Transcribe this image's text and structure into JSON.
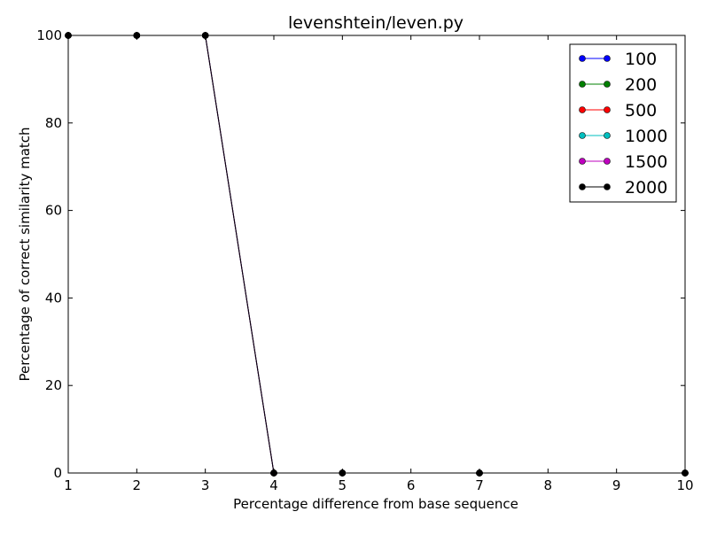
{
  "chart_data": {
    "type": "line",
    "title": "levenshtein/leven.py",
    "xlabel": "Percentage difference from base sequence",
    "ylabel": "Percentage of correct similarity match",
    "xlim": [
      1,
      10
    ],
    "ylim": [
      0,
      100
    ],
    "x_ticks": [
      "1",
      "2",
      "3",
      "4",
      "5",
      "6",
      "7",
      "8",
      "9",
      "10"
    ],
    "y_ticks": [
      "0",
      "20",
      "40",
      "60",
      "80",
      "100"
    ],
    "grid": false,
    "legend_position": "top-right",
    "x": [
      1,
      2,
      3,
      4,
      5,
      7,
      10
    ],
    "series": [
      {
        "name": "100",
        "color": "#0000ff",
        "values": [
          100,
          100,
          100,
          0,
          0,
          0,
          0
        ]
      },
      {
        "name": "200",
        "color": "#008000",
        "values": [
          100,
          100,
          100,
          0,
          0,
          0,
          0
        ]
      },
      {
        "name": "500",
        "color": "#ff0000",
        "values": [
          100,
          100,
          100,
          0,
          0,
          0,
          0
        ]
      },
      {
        "name": "1000",
        "color": "#00bfbf",
        "values": [
          100,
          100,
          100,
          0,
          0,
          0,
          0
        ]
      },
      {
        "name": "1500",
        "color": "#bf00bf",
        "values": [
          100,
          100,
          100,
          0,
          0,
          0,
          0
        ]
      },
      {
        "name": "2000",
        "color": "#000000",
        "values": [
          100,
          100,
          100,
          0,
          0,
          0,
          0
        ]
      }
    ]
  }
}
